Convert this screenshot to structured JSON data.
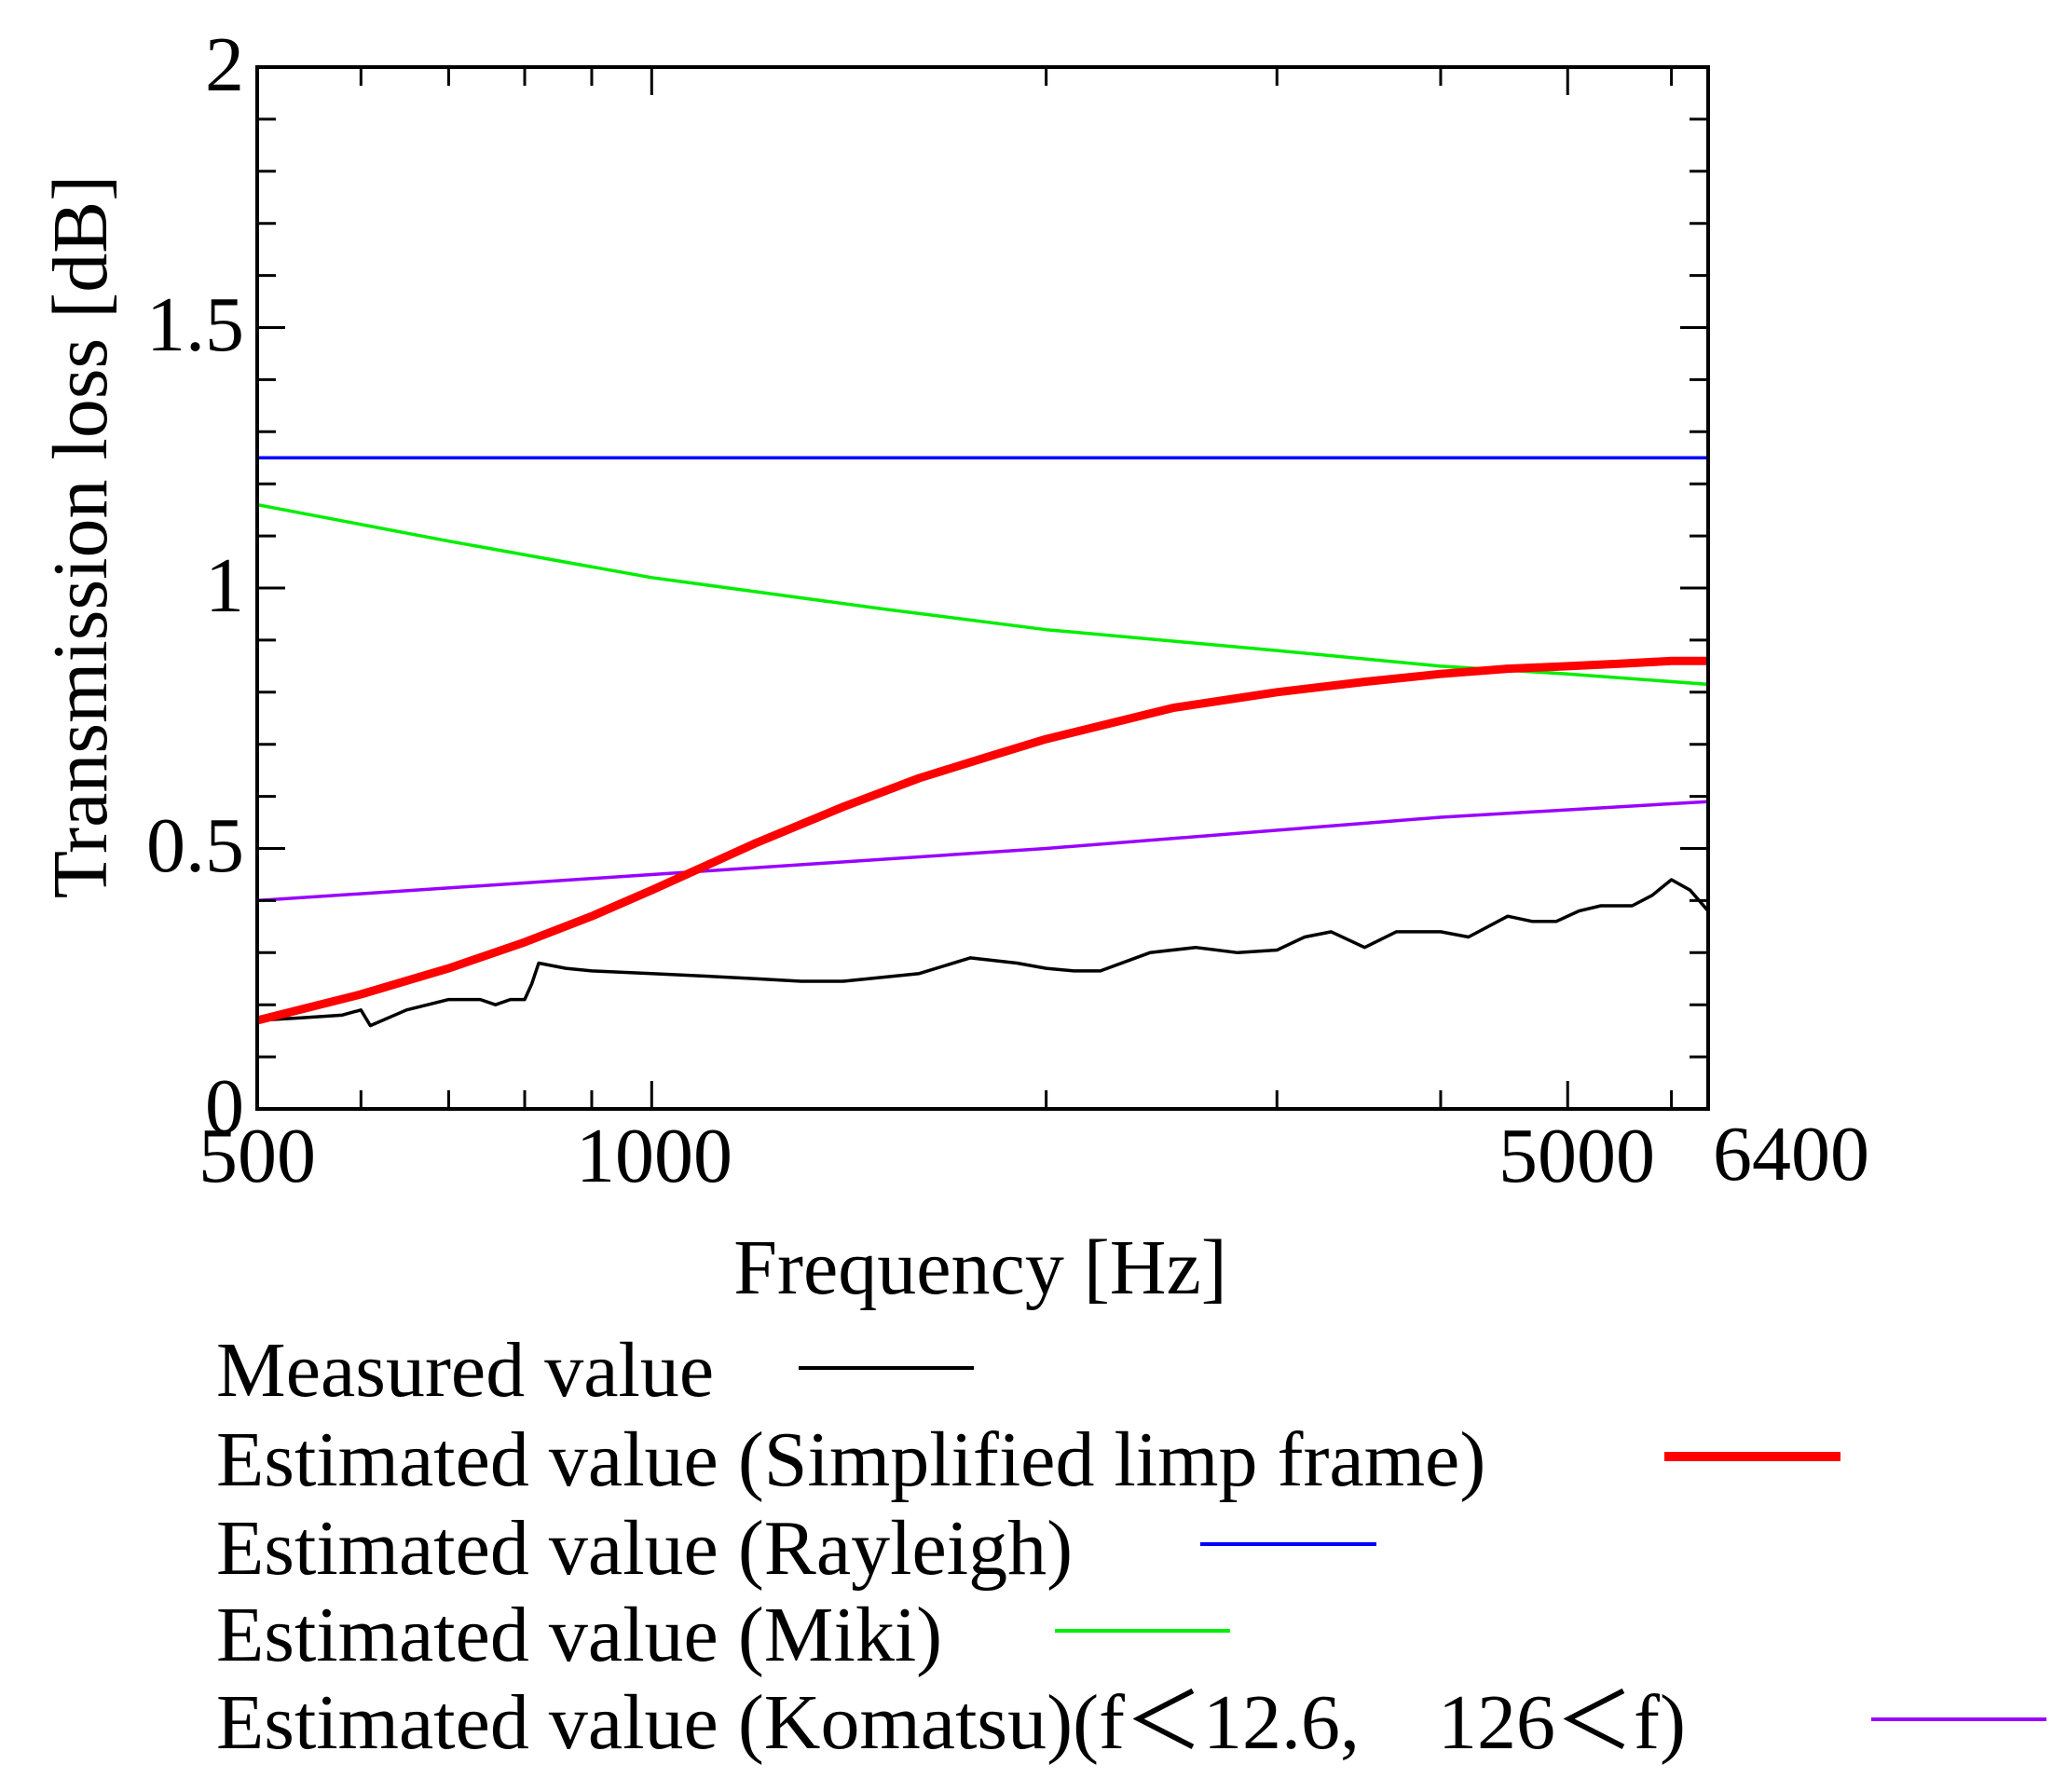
{
  "chart_data": {
    "type": "line",
    "title": "",
    "xlabel": "Frequency [Hz]",
    "ylabel": "Transmission loss [dB]",
    "xscale": "log",
    "xlim": [
      500,
      6400
    ],
    "ylim": [
      0,
      2
    ],
    "x_tick_labels": [
      "500",
      "1000",
      "5000",
      "6400"
    ],
    "x_tick_values": [
      500,
      1000,
      5000,
      6400
    ],
    "y_tick_labels": [
      "0",
      "0.5",
      "1",
      "1.5",
      "2"
    ],
    "y_tick_values": [
      0,
      0.5,
      1,
      1.5,
      2
    ],
    "grid": false,
    "legend_position": "below",
    "series": [
      {
        "name": "Measured value",
        "color": "#000000",
        "style": "thin",
        "x": [
          500,
          540,
          580,
          600,
          610,
          650,
          700,
          740,
          760,
          780,
          800,
          810,
          820,
          860,
          900,
          1000,
          1100,
          1200,
          1300,
          1400,
          1600,
          1750,
          1900,
          2000,
          2100,
          2200,
          2400,
          2600,
          2800,
          3000,
          3150,
          3300,
          3500,
          3700,
          4000,
          4200,
          4500,
          4700,
          4900,
          5100,
          5300,
          5600,
          5800,
          6000,
          6200,
          6400
        ],
        "values": [
          0.17,
          0.175,
          0.18,
          0.19,
          0.16,
          0.19,
          0.21,
          0.21,
          0.2,
          0.21,
          0.21,
          0.24,
          0.28,
          0.27,
          0.265,
          0.26,
          0.255,
          0.25,
          0.245,
          0.245,
          0.26,
          0.29,
          0.28,
          0.27,
          0.265,
          0.265,
          0.3,
          0.31,
          0.3,
          0.305,
          0.33,
          0.34,
          0.31,
          0.34,
          0.34,
          0.33,
          0.37,
          0.36,
          0.36,
          0.38,
          0.39,
          0.39,
          0.41,
          0.44,
          0.42,
          0.38
        ]
      },
      {
        "name": "Estimated value (Simplified limp frame)",
        "color": "#ff0000",
        "style": "thick",
        "x": [
          500,
          600,
          700,
          800,
          900,
          1000,
          1200,
          1400,
          1600,
          1800,
          2000,
          2500,
          3000,
          3500,
          4000,
          4500,
          5000,
          5500,
          6000,
          6400
        ],
        "values": [
          0.17,
          0.22,
          0.27,
          0.32,
          0.37,
          0.42,
          0.51,
          0.58,
          0.635,
          0.675,
          0.71,
          0.77,
          0.8,
          0.82,
          0.835,
          0.845,
          0.85,
          0.855,
          0.86,
          0.86
        ]
      },
      {
        "name": "Estimated value (Rayleigh)",
        "color": "#0000ff",
        "style": "thin",
        "x": [
          500,
          6400
        ],
        "values": [
          1.25,
          1.25
        ]
      },
      {
        "name": "Estimated value (Miki)",
        "color": "#00ee00",
        "style": "thin",
        "x": [
          500,
          700,
          1000,
          1500,
          2000,
          3000,
          4000,
          5000,
          6400
        ],
        "values": [
          1.16,
          1.09,
          1.02,
          0.96,
          0.92,
          0.88,
          0.85,
          0.835,
          0.815
        ]
      },
      {
        "name": "Estimated value (Komatsu)(f＜12.6,　126＜f)",
        "color": "#9900ff",
        "style": "thin",
        "x": [
          500,
          1000,
          2000,
          4000,
          6400
        ],
        "values": [
          0.4,
          0.45,
          0.5,
          0.56,
          0.59
        ]
      }
    ]
  }
}
